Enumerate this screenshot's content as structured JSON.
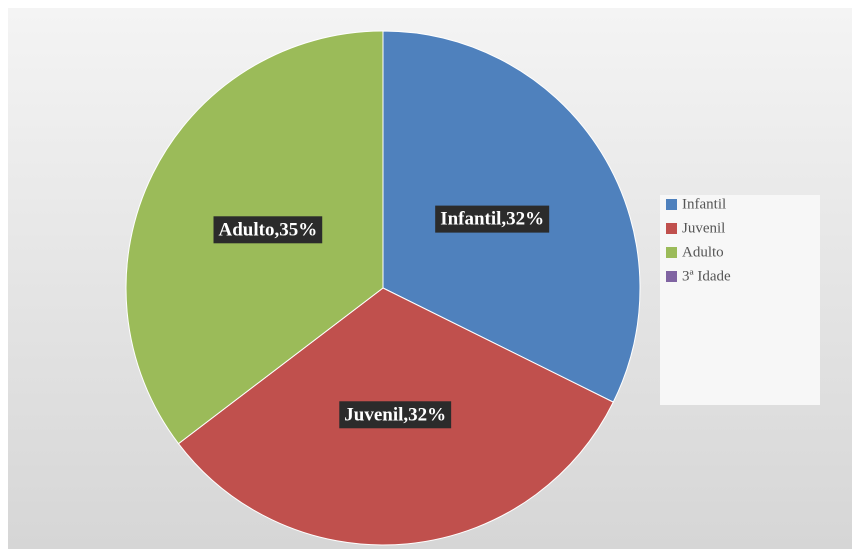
{
  "chart_data": {
    "type": "pie",
    "categories": [
      "Infantil",
      "Juvenil",
      "Adulto",
      "3ª Idade"
    ],
    "values": [
      32,
      32,
      35,
      0
    ],
    "value_labels": [
      "Infantil,32%",
      "Juvenil,32%",
      "Adulto,35%",
      null
    ],
    "colors": [
      "#4f81bd",
      "#c0504d",
      "#9bbb59",
      "#8064a2"
    ],
    "legend": "right"
  }
}
